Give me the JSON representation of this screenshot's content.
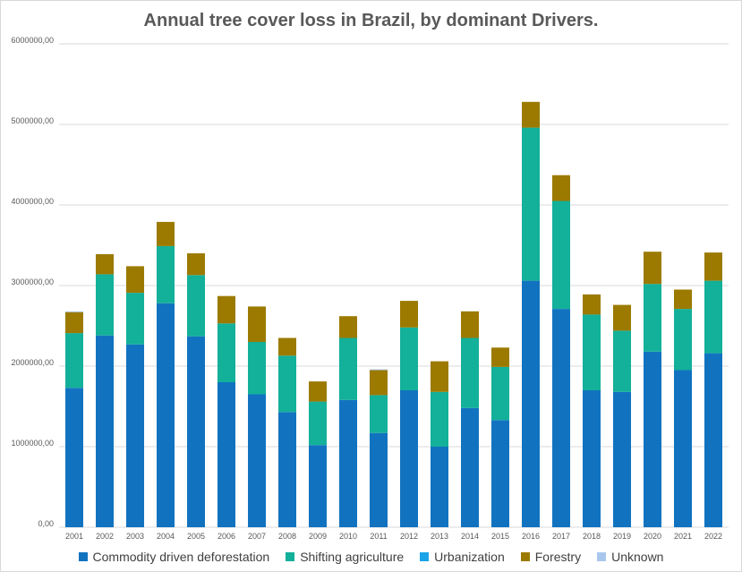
{
  "chart_data": {
    "type": "bar",
    "stacked": true,
    "title": "Annual tree cover loss in Brazil, by dominant Drivers.",
    "xlabel": "",
    "ylabel": "",
    "ylim": [
      0,
      6000000
    ],
    "yticks": [
      0,
      1000000,
      2000000,
      3000000,
      4000000,
      5000000,
      6000000
    ],
    "ytick_labels": [
      "0,00",
      "1000000,00",
      "2000000,00",
      "3000000,00",
      "4000000,00",
      "5000000,00",
      "6000000,00"
    ],
    "grid": true,
    "legend_position": "bottom",
    "categories": [
      "2001",
      "2002",
      "2003",
      "2004",
      "2005",
      "2006",
      "2007",
      "2008",
      "2009",
      "2010",
      "2011",
      "2012",
      "2013",
      "2014",
      "2015",
      "2016",
      "2017",
      "2018",
      "2019",
      "2020",
      "2021",
      "2022"
    ],
    "series": [
      {
        "name": "Commodity driven deforestation",
        "color": "#1173c0",
        "values": [
          1730000,
          2380000,
          2270000,
          2780000,
          2370000,
          1800000,
          1650000,
          1430000,
          1020000,
          1580000,
          1170000,
          1700000,
          1000000,
          1480000,
          1330000,
          3060000,
          2710000,
          1700000,
          1680000,
          2180000,
          1950000,
          2160000
        ]
      },
      {
        "name": "Shifting agriculture",
        "color": "#13b09a",
        "values": [
          680000,
          760000,
          640000,
          710000,
          760000,
          730000,
          650000,
          700000,
          540000,
          770000,
          470000,
          780000,
          680000,
          870000,
          660000,
          1900000,
          1340000,
          940000,
          760000,
          840000,
          760000,
          900000
        ]
      },
      {
        "name": "Urbanization",
        "color": "#1aa3e8",
        "values": [
          0,
          0,
          0,
          0,
          0,
          0,
          0,
          0,
          0,
          0,
          0,
          0,
          0,
          0,
          0,
          0,
          0,
          0,
          0,
          0,
          0,
          0
        ]
      },
      {
        "name": "Forestry",
        "color": "#9c7a00",
        "values": [
          260000,
          250000,
          330000,
          300000,
          270000,
          340000,
          440000,
          220000,
          250000,
          270000,
          310000,
          330000,
          380000,
          330000,
          240000,
          320000,
          320000,
          250000,
          320000,
          400000,
          240000,
          350000
        ]
      },
      {
        "name": "Unknown",
        "color": "#a9c7ee",
        "values": [
          10000,
          0,
          0,
          0,
          0,
          0,
          0,
          0,
          0,
          0,
          10000,
          0,
          0,
          0,
          0,
          0,
          0,
          0,
          0,
          0,
          0,
          0
        ]
      }
    ]
  }
}
